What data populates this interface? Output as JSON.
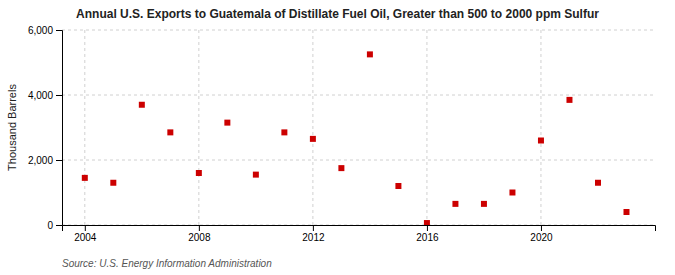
{
  "chart_data": {
    "type": "scatter",
    "title": "Annual U.S. Exports to Guatemala of Distillate Fuel Oil, Greater than 500 to 2000 ppm Sulfur",
    "y_label": "Thousand Barrels",
    "annotations": [
      "Source: U.S. Energy Information Administration"
    ],
    "x": [
      2004,
      2005,
      2006,
      2007,
      2008,
      2009,
      2010,
      2011,
      2012,
      2013,
      2014,
      2015,
      2016,
      2017,
      2018,
      2019,
      2020,
      2021,
      2022,
      2023
    ],
    "values": [
      1450,
      1300,
      3700,
      2850,
      1600,
      3150,
      1550,
      2850,
      2650,
      1750,
      5250,
      1200,
      60,
      650,
      650,
      1000,
      2600,
      3850,
      1300,
      400
    ],
    "color": "#cc0000",
    "marker": "square",
    "xlim": [
      2003.2,
      2024
    ],
    "xticks": [
      2004,
      2008,
      2012,
      2016,
      2020
    ],
    "ylim": [
      0,
      6000
    ],
    "yticks": [
      0,
      {
        "value": 2000,
        "label": "2,000"
      },
      {
        "value": 4000,
        "label": "4,000"
      },
      {
        "value": 6000,
        "label": "6,000"
      }
    ],
    "grid": true
  }
}
